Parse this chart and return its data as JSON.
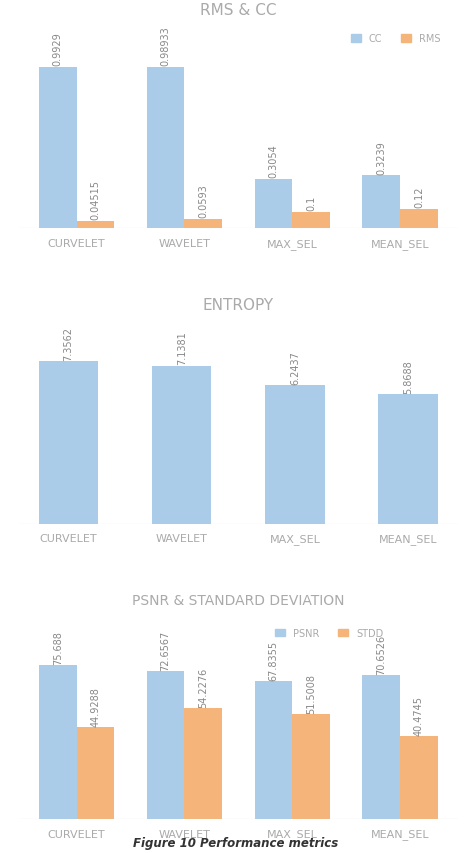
{
  "categories": [
    "CURVELET",
    "WAVELET",
    "MAX_SEL",
    "MEAN_SEL"
  ],
  "chart1": {
    "title": "RMS & CC",
    "series": {
      "CC": [
        0.9929,
        0.98933,
        0.3054,
        0.3239
      ],
      "RMS": [
        0.04515,
        0.0593,
        0.1,
        0.12
      ]
    },
    "legend": [
      "CC",
      "RMS"
    ],
    "bar_colors": [
      "#aacce8",
      "#f4b47a"
    ],
    "value_labels": {
      "CC": [
        "0.9929",
        "0.98933",
        "0.3054",
        "0.3239"
      ],
      "RMS": [
        "0.04515",
        "0.0593",
        "0.1",
        "0.12"
      ]
    }
  },
  "chart2": {
    "title": "ENTROPY",
    "series": {
      "ENTROPY": [
        7.3562,
        7.1381,
        6.2437,
        5.8688
      ]
    },
    "bar_color": "#aacce8",
    "value_labels": [
      "7.3562",
      "7.1381",
      "6.2437",
      "5.8688"
    ]
  },
  "chart3": {
    "title": "PSNR & STANDARD DEVIATION",
    "series": {
      "PSNR": [
        75.688,
        72.6567,
        67.8355,
        70.6526
      ],
      "STDD": [
        44.9288,
        54.2276,
        51.5008,
        40.4745
      ]
    },
    "legend": [
      "PSNR",
      "STDD"
    ],
    "bar_colors": [
      "#aacce8",
      "#f4b47a"
    ],
    "value_labels": {
      "PSNR": [
        "75.688",
        "72.6567",
        "67.8355",
        "70.6526"
      ],
      "STDD": [
        "44.9288",
        "54.2276",
        "51.5008",
        "40.4745"
      ]
    }
  },
  "figure_caption": "Figure 10 Performance metrics",
  "title_color": "#aaaaaa",
  "label_color": "#aaaaaa",
  "value_color": "#888888",
  "bar_width": 0.35,
  "background_color": "#ffffff"
}
